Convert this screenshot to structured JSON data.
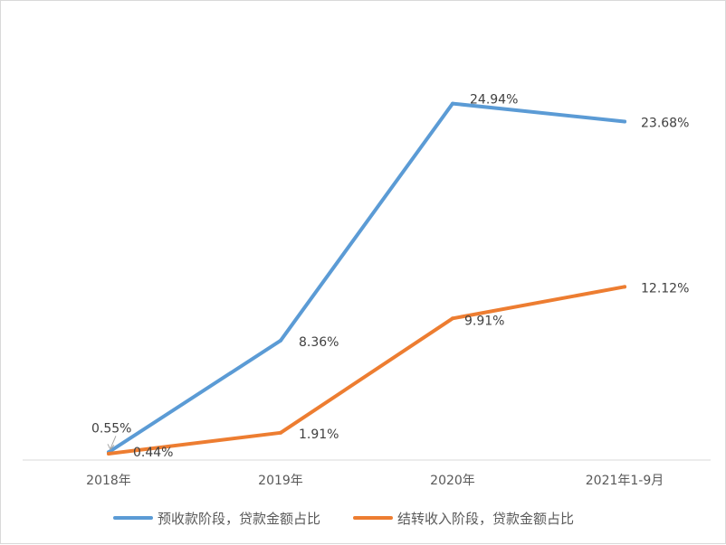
{
  "chart_data": {
    "type": "line",
    "categories": [
      "2018年",
      "2019年",
      "2020年",
      "2021年1-9月"
    ],
    "series": [
      {
        "name": "预收款阶段，贷款金额占比",
        "values": [
          0.55,
          8.36,
          24.94,
          23.68
        ],
        "labels": [
          "0.55%",
          "8.36%",
          "24.94%",
          "23.68%"
        ],
        "color": "#5B9BD5"
      },
      {
        "name": "结转收入阶段，贷款金额占比",
        "values": [
          0.44,
          1.91,
          9.91,
          12.12
        ],
        "labels": [
          "0.44%",
          "1.91%",
          "9.91%",
          "12.12%"
        ],
        "color": "#ED7D31"
      }
    ],
    "ylim": [
      0,
      27
    ],
    "grid": false,
    "legend_position": "bottom"
  }
}
